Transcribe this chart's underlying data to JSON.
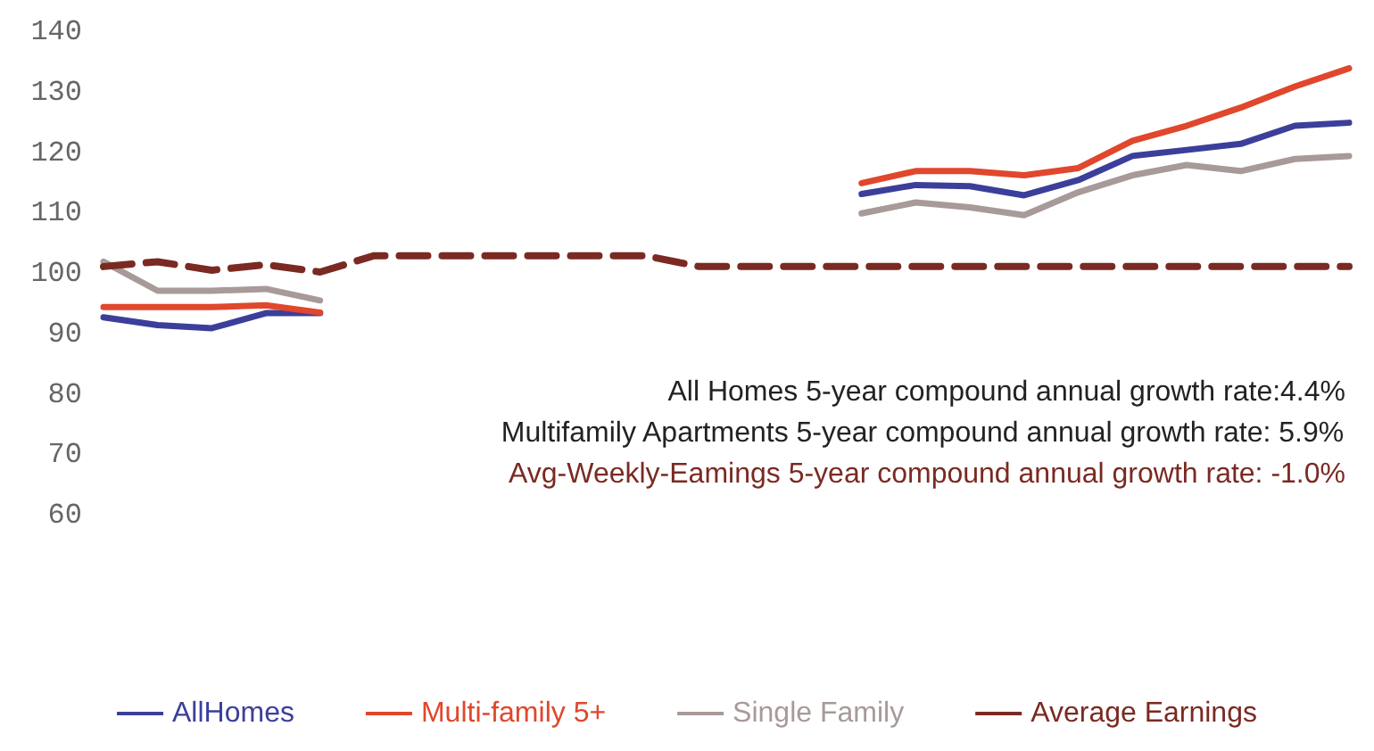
{
  "chart_data": {
    "type": "line",
    "categories": [
      null,
      null,
      null,
      null,
      null,
      null,
      null,
      null,
      null,
      null,
      null,
      null,
      null,
      null,
      null,
      null,
      null,
      null,
      null,
      null,
      null,
      null,
      null,
      null
    ],
    "series": [
      {
        "name": "AllHomes",
        "color": "#3b3f9a",
        "values": [
          92.8,
          91.5,
          91,
          93.5,
          93.5,
          null,
          null,
          null,
          null,
          null,
          null,
          null,
          null,
          null,
          113.2,
          114.7,
          114.5,
          113,
          115.5,
          119.5,
          120.5,
          121.5,
          124.5,
          125
        ]
      },
      {
        "name": "Multi-family 5+",
        "color": "#e0472c",
        "values": [
          94.5,
          94.5,
          94.5,
          94.8,
          93.6,
          null,
          null,
          null,
          null,
          null,
          null,
          null,
          null,
          null,
          115,
          117,
          117,
          116.3,
          117.5,
          122,
          124.5,
          127.5,
          131,
          134
        ]
      },
      {
        "name": "Single Family",
        "color": "#a89a98",
        "values": [
          102,
          97.2,
          97.2,
          97.5,
          95.6,
          null,
          null,
          null,
          null,
          null,
          null,
          null,
          null,
          null,
          110,
          111.8,
          111,
          109.7,
          113.5,
          116.3,
          118,
          117,
          119,
          119.5
        ]
      },
      {
        "name": "Average Earnings",
        "color": "#7a2a22",
        "line_style": "dashed",
        "values": [
          101.2,
          102,
          100.6,
          101.5,
          100.3,
          103,
          103,
          103,
          103,
          103,
          103,
          101.2,
          101.2,
          101.2,
          101.2,
          101.2,
          101.2,
          101.2,
          101.2,
          101.2,
          101.2,
          101.2,
          101.2,
          101.2
        ]
      }
    ],
    "ylim": [
      60,
      140
    ],
    "yticks": [
      60,
      70,
      80,
      90,
      100,
      110,
      120,
      130,
      140
    ],
    "grid": false,
    "legend": "bottom",
    "tick_labels": "y",
    "annotations": [
      "All Homes 5-year compound annual growth rate:4.4%",
      "Multifamily Apartments 5-year compound annual growth rate: 5.9%",
      "Avg-Weekly-Eamings 5-year compound annual growth rate: -1.0%"
    ]
  }
}
